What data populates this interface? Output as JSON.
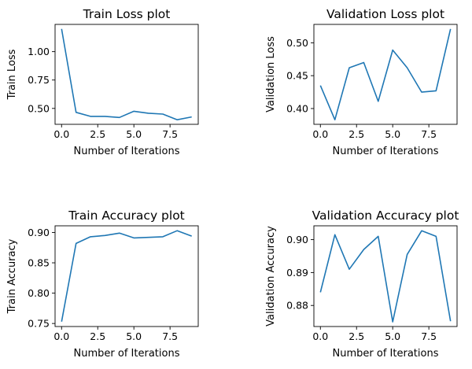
{
  "chart_data": [
    {
      "type": "line",
      "title": "Train Loss plot",
      "xlabel": "Number of Iterations",
      "ylabel": "Train Loss",
      "x": [
        0,
        1,
        2,
        3,
        4,
        5,
        6,
        7,
        8,
        9
      ],
      "values": [
        1.2,
        0.465,
        0.43,
        0.43,
        0.42,
        0.475,
        0.458,
        0.45,
        0.4,
        0.425
      ],
      "xlim": [
        -0.45,
        9.45
      ],
      "ylim": [
        0.36,
        1.24
      ],
      "xticks": [
        "0.0",
        "2.5",
        "5.0",
        "7.5"
      ],
      "xtick_values": [
        0,
        2.5,
        5,
        7.5
      ],
      "yticks": [
        "0.50",
        "0.75",
        "1.00"
      ],
      "ytick_values": [
        0.5,
        0.75,
        1.0
      ],
      "color": "#1f77b4",
      "grid": false
    },
    {
      "type": "line",
      "title": "Validation Loss plot",
      "xlabel": "Number of Iterations",
      "ylabel": "Validation Loss",
      "x": [
        0,
        1,
        2,
        3,
        4,
        5,
        6,
        7,
        8,
        9
      ],
      "values": [
        0.435,
        0.383,
        0.462,
        0.47,
        0.411,
        0.489,
        0.462,
        0.425,
        0.427,
        0.521
      ],
      "xlim": [
        -0.45,
        9.45
      ],
      "ylim": [
        0.376,
        0.528
      ],
      "xticks": [
        "0.0",
        "2.5",
        "5.0",
        "7.5"
      ],
      "xtick_values": [
        0,
        2.5,
        5,
        7.5
      ],
      "yticks": [
        "0.40",
        "0.45",
        "0.50"
      ],
      "ytick_values": [
        0.4,
        0.45,
        0.5
      ],
      "color": "#1f77b4",
      "grid": false
    },
    {
      "type": "line",
      "title": "Train Accuracy plot",
      "xlabel": "Number of Iterations",
      "ylabel": "Train Accuracy",
      "x": [
        0,
        1,
        2,
        3,
        4,
        5,
        6,
        7,
        8,
        9
      ],
      "values": [
        0.753,
        0.882,
        0.893,
        0.895,
        0.899,
        0.891,
        0.892,
        0.893,
        0.903,
        0.894
      ],
      "xlim": [
        -0.45,
        9.45
      ],
      "ylim": [
        0.745,
        0.911
      ],
      "xticks": [
        "0.0",
        "2.5",
        "5.0",
        "7.5"
      ],
      "xtick_values": [
        0,
        2.5,
        5,
        7.5
      ],
      "yticks": [
        "0.75",
        "0.80",
        "0.85",
        "0.90"
      ],
      "ytick_values": [
        0.75,
        0.8,
        0.85,
        0.9
      ],
      "color": "#1f77b4",
      "grid": false
    },
    {
      "type": "line",
      "title": "Validation Accuracy plot",
      "xlabel": "Number of Iterations",
      "ylabel": "Validation Accuracy",
      "x": [
        0,
        1,
        2,
        3,
        4,
        5,
        6,
        7,
        8,
        9
      ],
      "values": [
        0.884,
        0.9015,
        0.891,
        0.897,
        0.901,
        0.875,
        0.8955,
        0.9027,
        0.901,
        0.8752
      ],
      "xlim": [
        -0.45,
        9.45
      ],
      "ylim": [
        0.8736,
        0.9042
      ],
      "xticks": [
        "0.0",
        "2.5",
        "5.0",
        "7.5"
      ],
      "xtick_values": [
        0,
        2.5,
        5,
        7.5
      ],
      "yticks": [
        "0.88",
        "0.89",
        "0.90"
      ],
      "ytick_values": [
        0.88,
        0.89,
        0.9
      ],
      "color": "#1f77b4",
      "grid": false
    }
  ]
}
